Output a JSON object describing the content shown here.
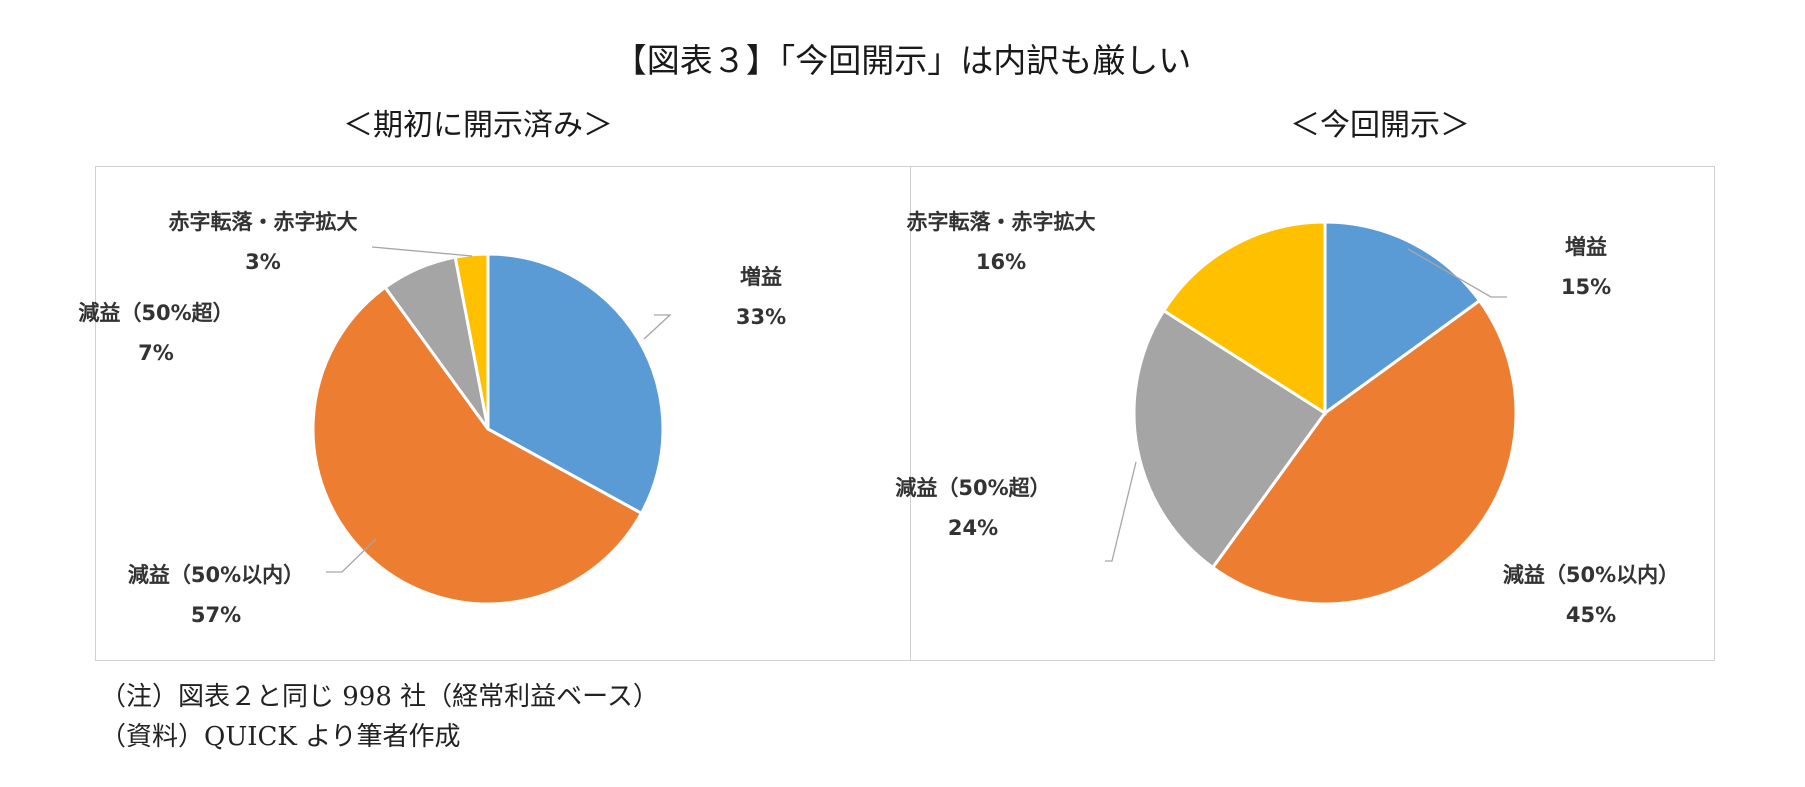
{
  "title": "【図表３】「今回開示」は内訳も厳しい",
  "notes": {
    "note1": "（注）図表２と同じ 998 社（経常利益ベース）",
    "note2": "（資料）QUICK より筆者作成"
  },
  "chart_data": [
    {
      "type": "pie",
      "title": "＜期初に開示済み＞",
      "slices": [
        {
          "label": "増益",
          "value": 33,
          "pct": "33%",
          "color": "#5b9bd5"
        },
        {
          "label": "減益（50%以内）",
          "value": 57,
          "pct": "57%",
          "color": "#ed7d31"
        },
        {
          "label": "減益（50%超）",
          "value": 7,
          "pct": "7%",
          "color": "#a5a5a5"
        },
        {
          "label": "赤字転落・赤字拡大",
          "value": 3,
          "pct": "3%",
          "color": "#ffc000"
        }
      ]
    },
    {
      "type": "pie",
      "title": "＜今回開示＞",
      "slices": [
        {
          "label": "増益",
          "value": 15,
          "pct": "15%",
          "color": "#5b9bd5"
        },
        {
          "label": "減益（50%以内）",
          "value": 45,
          "pct": "45%",
          "color": "#ed7d31"
        },
        {
          "label": "減益（50%超）",
          "value": 24,
          "pct": "24%",
          "color": "#a5a5a5"
        },
        {
          "label": "赤字転落・赤字拡大",
          "value": 16,
          "pct": "16%",
          "color": "#ffc000"
        }
      ]
    }
  ]
}
